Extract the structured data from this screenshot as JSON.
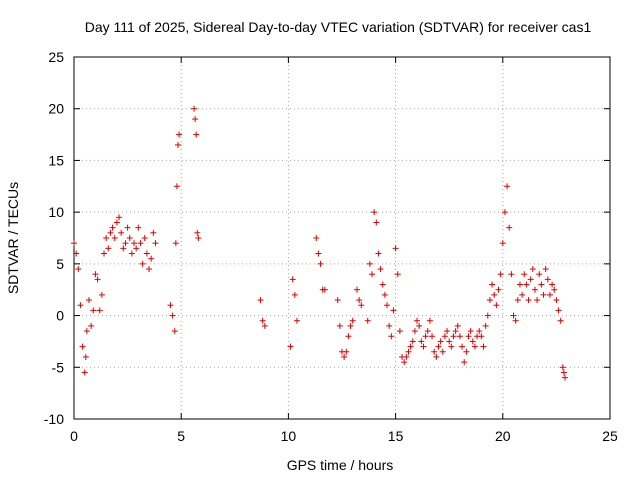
{
  "chart_data": {
    "type": "scatter",
    "title": "Day 111 of 2025, Sidereal Day-to-day VTEC variation (SDTVAR) for receiver cas1",
    "xlabel": "GPS time / hours",
    "ylabel": "SDTVAR / TECUs",
    "xlim": [
      0,
      25
    ],
    "ylim": [
      -10,
      25
    ],
    "xticks": [
      "0",
      "5",
      "10",
      "15",
      "20",
      "25"
    ],
    "yticks": [
      "-10",
      "-5",
      "0",
      "5",
      "10",
      "15",
      "20",
      "25"
    ],
    "grid": true,
    "marker": "plus",
    "color": "#e00000",
    "series": [
      {
        "name": "SDTVAR",
        "x": [
          0.0,
          0.1,
          0.2,
          0.3,
          0.4,
          0.5,
          0.55,
          0.6,
          0.7,
          0.8,
          0.9,
          1.0,
          1.1,
          1.2,
          1.3,
          1.4,
          1.5,
          1.6,
          1.7,
          1.8,
          1.9,
          2.0,
          2.1,
          2.2,
          2.3,
          2.4,
          2.5,
          2.6,
          2.7,
          2.8,
          2.9,
          3.0,
          3.1,
          3.2,
          3.3,
          3.4,
          3.5,
          3.6,
          3.7,
          3.8,
          4.5,
          4.6,
          4.7,
          4.75,
          4.8,
          4.85,
          4.9,
          5.6,
          5.65,
          5.7,
          5.75,
          5.8,
          8.7,
          8.8,
          8.9,
          10.1,
          10.2,
          10.3,
          10.4,
          11.3,
          11.4,
          11.5,
          11.6,
          11.7,
          12.3,
          12.4,
          12.5,
          12.6,
          12.7,
          12.8,
          12.9,
          13.0,
          13.2,
          13.3,
          13.4,
          13.7,
          13.8,
          13.9,
          14.0,
          14.1,
          14.2,
          14.3,
          14.4,
          14.5,
          14.6,
          14.7,
          14.8,
          14.9,
          15.0,
          15.1,
          15.2,
          15.3,
          15.4,
          15.5,
          15.6,
          15.7,
          15.8,
          15.9,
          16.0,
          16.1,
          16.2,
          16.3,
          16.4,
          16.5,
          16.6,
          16.7,
          16.8,
          16.9,
          17.0,
          17.1,
          17.2,
          17.3,
          17.4,
          17.5,
          17.6,
          17.7,
          17.8,
          17.9,
          18.0,
          18.1,
          18.2,
          18.3,
          18.4,
          18.5,
          18.6,
          18.7,
          18.8,
          18.9,
          19.0,
          19.1,
          19.2,
          19.3,
          19.4,
          19.5,
          19.6,
          19.7,
          19.8,
          19.9,
          20.0,
          20.1,
          20.2,
          20.3,
          20.4,
          20.5,
          20.6,
          20.7,
          20.8,
          20.9,
          21.0,
          21.1,
          21.2,
          21.3,
          21.4,
          21.5,
          21.6,
          21.7,
          21.8,
          21.9,
          22.0,
          22.1,
          22.2,
          22.3,
          22.4,
          22.5,
          22.6,
          22.7,
          22.8,
          22.85,
          22.9
        ],
        "y": [
          7.0,
          6.0,
          4.5,
          1.0,
          -3.0,
          -5.5,
          -4.0,
          -1.5,
          1.5,
          -1.0,
          0.5,
          4.0,
          3.5,
          0.5,
          2.0,
          6.0,
          7.5,
          6.5,
          8.0,
          8.5,
          7.5,
          9.0,
          9.5,
          8.0,
          6.5,
          7.0,
          8.5,
          7.5,
          6.0,
          7.0,
          6.5,
          8.5,
          7.0,
          5.0,
          7.5,
          6.0,
          4.5,
          5.5,
          8.0,
          7.0,
          1.0,
          0.0,
          -1.5,
          7.0,
          12.5,
          16.5,
          17.5,
          20.0,
          19.0,
          17.5,
          8.0,
          7.5,
          1.5,
          -0.5,
          -1.0,
          -3.0,
          3.5,
          2.0,
          -0.5,
          7.5,
          6.0,
          5.0,
          2.5,
          2.5,
          1.5,
          -1.0,
          -3.5,
          -4.0,
          -3.5,
          -2.0,
          -1.0,
          -0.5,
          2.5,
          1.5,
          1.0,
          -0.5,
          5.0,
          4.0,
          10.0,
          9.0,
          6.0,
          4.5,
          3.0,
          2.0,
          1.0,
          -1.0,
          -2.0,
          0.5,
          6.5,
          4.0,
          -1.5,
          -4.0,
          -4.5,
          -4.0,
          -3.5,
          -3.0,
          -2.5,
          -1.5,
          -0.5,
          -1.0,
          -2.5,
          -3.0,
          -2.0,
          -1.5,
          -0.5,
          -2.0,
          -3.5,
          -4.0,
          -3.0,
          -2.5,
          -3.5,
          -2.0,
          -1.5,
          -2.5,
          -3.0,
          -2.0,
          -1.5,
          -1.0,
          -2.0,
          -3.0,
          -4.5,
          -3.5,
          -2.0,
          -1.5,
          -2.5,
          -3.0,
          -2.0,
          -1.5,
          -2.0,
          -3.0,
          -1.0,
          0.0,
          1.5,
          3.0,
          2.0,
          1.0,
          2.5,
          4.0,
          7.0,
          10.0,
          12.5,
          8.5,
          4.0,
          0.0,
          -0.5,
          1.5,
          3.0,
          2.0,
          4.0,
          3.0,
          1.5,
          3.5,
          4.5,
          2.5,
          1.5,
          4.0,
          3.0,
          2.0,
          4.5,
          3.5,
          2.0,
          3.0,
          2.5,
          1.5,
          0.5,
          -0.5,
          -5.0,
          -5.5,
          -6.0
        ]
      }
    ]
  }
}
